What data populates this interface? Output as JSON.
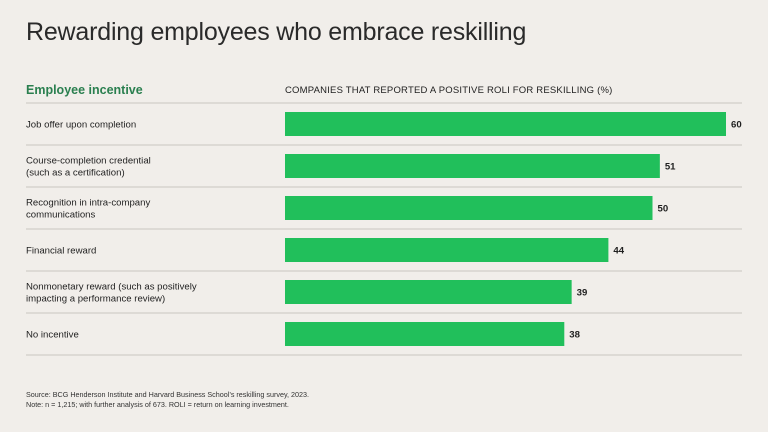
{
  "title": "Rewarding employees who embrace reskilling",
  "headers": {
    "left": "Employee incentive",
    "right": "COMPANIES THAT REPORTED A POSITIVE ROLI FOR RESKILLING (%)"
  },
  "colors": {
    "bar": "#21bf5b",
    "accent_text": "#2a7f4f",
    "divider": "#c9c5c0",
    "background": "#f1eeea"
  },
  "chart_data": {
    "type": "bar",
    "orientation": "horizontal",
    "categories": [
      "Job offer upon completion",
      "Course-completion credential\n(such as a certification)",
      "Recognition in intra-company\ncommunications",
      "Financial reward",
      "Nonmonetary reward (such as positively\nimpacting a performance review)",
      "No incentive"
    ],
    "values": [
      60,
      51,
      50,
      44,
      39,
      38
    ],
    "xlim": [
      0,
      60
    ],
    "grid": false,
    "data_labels": true
  },
  "footnotes": {
    "source": "Source: BCG Henderson Institute and Harvard Business School’s reskilling survey, 2023.",
    "note": "Note: n = 1,215; with further analysis of 673. ROLI = return on learning investment."
  }
}
